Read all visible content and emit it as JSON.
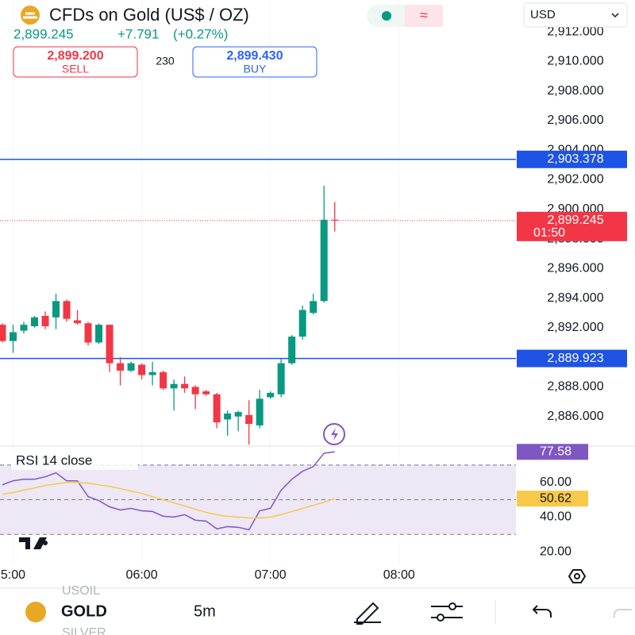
{
  "header": {
    "title": "CFDs on Gold (US$ / OZ)",
    "price": "2,899.245",
    "change": "+7.791",
    "change_pct": "(+0.27%)",
    "sell_price": "2,899.200",
    "sell_label": "SELL",
    "spread": "230",
    "buy_price": "2,899.430",
    "buy_label": "BUY",
    "currency": "USD"
  },
  "chart_data": [
    {
      "type": "candlestick",
      "x": [
        0,
        1,
        2,
        3,
        4,
        5,
        6,
        7,
        8,
        9,
        10,
        11,
        12,
        13,
        14,
        15,
        16,
        17,
        18,
        19,
        20,
        21,
        22,
        23,
        24,
        25,
        26,
        27,
        28,
        29,
        30,
        31
      ],
      "open": [
        2892.2,
        2891.1,
        2891.8,
        2892.1,
        2892.8,
        2892.7,
        2893.8,
        2892.5,
        2892.3,
        2891.0,
        2892.2,
        2889.6,
        2889.1,
        2889.5,
        2888.8,
        2889.0,
        2887.9,
        2888.2,
        2888.0,
        2887.7,
        2887.5,
        2885.8,
        2886.0,
        2886.1,
        2885.4,
        2887.3,
        2887.5,
        2889.6,
        2891.4,
        2893.0,
        2893.8,
        2899.3
      ],
      "high": [
        2892.3,
        2892.2,
        2892.4,
        2892.8,
        2893.1,
        2894.3,
        2893.9,
        2893.2,
        2892.4,
        2892.3,
        2892.2,
        2890.0,
        2889.7,
        2889.6,
        2889.7,
        2889.1,
        2888.5,
        2888.7,
        2888.1,
        2887.8,
        2887.6,
        2886.4,
        2886.4,
        2887.1,
        2887.8,
        2887.7,
        2889.9,
        2891.5,
        2893.5,
        2894.3,
        2901.6,
        2900.5
      ],
      "low": [
        2891.0,
        2890.3,
        2891.6,
        2892.0,
        2891.9,
        2891.9,
        2892.4,
        2892.2,
        2890.8,
        2890.9,
        2889.0,
        2888.1,
        2889.0,
        2888.5,
        2888.1,
        2887.8,
        2886.4,
        2887.6,
        2886.5,
        2887.4,
        2885.2,
        2884.7,
        2885.0,
        2884.1,
        2885.2,
        2887.2,
        2887.3,
        2889.5,
        2891.2,
        2892.9,
        2893.7,
        2898.5
      ],
      "close": [
        2891.1,
        2891.7,
        2892.2,
        2892.7,
        2892.1,
        2893.8,
        2892.6,
        2892.3,
        2891.0,
        2892.2,
        2889.6,
        2889.1,
        2889.6,
        2888.8,
        2889.0,
        2887.9,
        2888.2,
        2887.9,
        2887.5,
        2887.5,
        2885.6,
        2886.2,
        2886.3,
        2885.5,
        2887.2,
        2887.6,
        2889.6,
        2891.4,
        2893.2,
        2893.8,
        2899.3,
        2899.245
      ],
      "colors": {
        "up": "#089981",
        "down": "#f23645"
      },
      "xlim": [
        -0.22,
        47.9
      ],
      "xticks": [
        {
          "value": 1,
          "label": "5:00"
        },
        {
          "value": 13,
          "label": "06:00"
        },
        {
          "value": 25,
          "label": "07:00"
        },
        {
          "value": 37,
          "label": "08:00"
        }
      ],
      "ylim": [
        2884.0,
        2914.15
      ],
      "yticks": [
        {
          "value": 2886,
          "label": "2,886.000"
        },
        {
          "value": 2888,
          "label": "2,888.000"
        },
        {
          "value": 2890,
          "label": "2,890.000"
        },
        {
          "value": 2892,
          "label": "2,892.000"
        },
        {
          "value": 2894,
          "label": "2,894.000"
        },
        {
          "value": 2896,
          "label": "2,896.000"
        },
        {
          "value": 2898,
          "label": "2,898.000"
        },
        {
          "value": 2900,
          "label": "2,900.000"
        },
        {
          "value": 2902,
          "label": "2,902.000"
        },
        {
          "value": 2904,
          "label": "2,904.000"
        },
        {
          "value": 2906,
          "label": "2,906.000"
        },
        {
          "value": 2908,
          "label": "2,908.000"
        },
        {
          "value": 2910,
          "label": "2,910.000"
        },
        {
          "value": 2912,
          "label": "2,912.000"
        }
      ],
      "price_lines": [
        {
          "value": 2903.378,
          "label": "2,903.378",
          "color": "#1e53e5"
        },
        {
          "value": 2889.923,
          "label": "2,889.923",
          "color": "#1e53e5"
        }
      ],
      "last_price": {
        "value": 2899.245,
        "label": "2,899.245",
        "countdown": "01:50",
        "color": "#f23645"
      }
    },
    {
      "type": "line",
      "title": "RSI 14 close",
      "x": [
        0,
        1,
        2,
        3,
        4,
        5,
        6,
        7,
        8,
        9,
        10,
        11,
        12,
        13,
        14,
        15,
        16,
        17,
        18,
        19,
        20,
        21,
        22,
        23,
        24,
        25,
        26,
        27,
        28,
        29,
        30,
        31
      ],
      "series": [
        {
          "color": "#7e57c2",
          "values": [
            58.6,
            60.9,
            61.8,
            61.8,
            63.2,
            65.5,
            60.9,
            60.9,
            51.8,
            49.5,
            45.9,
            44.1,
            45.0,
            43.6,
            43.2,
            40.5,
            40.0,
            41.4,
            38.2,
            37.7,
            33.2,
            34.5,
            34.1,
            32.7,
            43.6,
            45.0,
            55.5,
            61.8,
            66.4,
            69.1,
            76.8,
            77.58
          ]
        },
        {
          "color": "#f7c948",
          "values": [
            53.2,
            54.1,
            55.5,
            56.8,
            58.2,
            59.1,
            60.0,
            60.0,
            59.5,
            58.6,
            57.7,
            56.4,
            55.0,
            53.6,
            51.8,
            50.0,
            48.2,
            46.4,
            44.5,
            42.7,
            41.4,
            40.5,
            40.0,
            39.5,
            39.5,
            40.0,
            41.4,
            43.2,
            45.0,
            46.8,
            48.6,
            50.62
          ]
        }
      ],
      "xlim": [
        -0.22,
        47.9
      ],
      "ylim": [
        13.2,
        80.45
      ],
      "yticks": [
        {
          "value": 20,
          "label": "20.00"
        },
        {
          "value": 40,
          "label": "40.00"
        },
        {
          "value": 60,
          "label": "60.00"
        }
      ],
      "band": [
        30,
        70
      ],
      "levels": [
        70,
        50,
        30
      ],
      "band_color": "#ede7f6"
    }
  ],
  "footer": {
    "prev": "USOIL",
    "symbol": "GOLD",
    "interval": "5m",
    "next": "SILVER"
  }
}
